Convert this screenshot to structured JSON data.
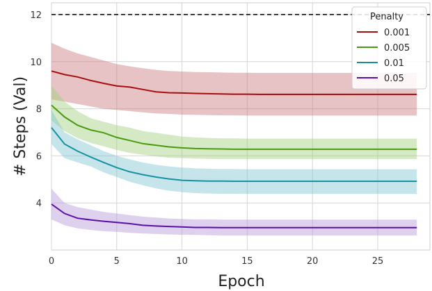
{
  "chart_data": {
    "type": "line",
    "xlabel": "Epoch",
    "ylabel": "# Steps (Val)",
    "xlim": [
      0,
      29
    ],
    "ylim": [
      2,
      12.5
    ],
    "xticks": [
      0,
      5,
      10,
      15,
      20,
      25
    ],
    "yticks": [
      4,
      6,
      8,
      10,
      12
    ],
    "grid": true,
    "legend": {
      "title": "Penalty",
      "placement": "top-right"
    },
    "x": [
      0,
      1,
      2,
      3,
      4,
      5,
      6,
      7,
      8,
      9,
      10,
      11,
      12,
      13,
      14,
      15,
      16,
      17,
      18,
      19,
      20,
      21,
      22,
      23,
      24,
      25,
      26,
      27,
      28
    ],
    "reference_line": {
      "y": 12,
      "style": "dashed",
      "color": "#111111"
    },
    "series": [
      {
        "name": "0.001",
        "color": "#a80d0d",
        "band_color": "#cd7b7e",
        "values": [
          9.6,
          9.45,
          9.35,
          9.2,
          9.08,
          8.97,
          8.92,
          8.82,
          8.72,
          8.68,
          8.67,
          8.65,
          8.64,
          8.63,
          8.62,
          8.62,
          8.61,
          8.61,
          8.61,
          8.61,
          8.61,
          8.61,
          8.61,
          8.61,
          8.61,
          8.61,
          8.61,
          8.61,
          8.61
        ],
        "lower": [
          8.4,
          8.3,
          8.2,
          8.1,
          8.0,
          7.95,
          7.9,
          7.85,
          7.8,
          7.78,
          7.75,
          7.74,
          7.73,
          7.72,
          7.72,
          7.71,
          7.71,
          7.71,
          7.71,
          7.71,
          7.71,
          7.71,
          7.71,
          7.71,
          7.71,
          7.71,
          7.71,
          7.71,
          7.71
        ],
        "upper": [
          10.8,
          10.55,
          10.35,
          10.2,
          10.05,
          9.9,
          9.8,
          9.72,
          9.65,
          9.6,
          9.58,
          9.56,
          9.55,
          9.54,
          9.53,
          9.53,
          9.52,
          9.52,
          9.52,
          9.52,
          9.52,
          9.52,
          9.52,
          9.52,
          9.52,
          9.52,
          9.52,
          9.52,
          9.52
        ]
      },
      {
        "name": "0.005",
        "color": "#4a9a0c",
        "band_color": "#9fce7c",
        "values": [
          8.15,
          7.65,
          7.3,
          7.1,
          6.98,
          6.78,
          6.65,
          6.52,
          6.45,
          6.38,
          6.34,
          6.31,
          6.3,
          6.29,
          6.28,
          6.28,
          6.28,
          6.28,
          6.28,
          6.28,
          6.28,
          6.28,
          6.28,
          6.28,
          6.28,
          6.28,
          6.28,
          6.28,
          6.28
        ],
        "lower": [
          7.5,
          7.05,
          6.75,
          6.55,
          6.4,
          6.25,
          6.12,
          6.05,
          5.98,
          5.92,
          5.9,
          5.88,
          5.87,
          5.86,
          5.86,
          5.86,
          5.86,
          5.86,
          5.86,
          5.86,
          5.86,
          5.86,
          5.86,
          5.86,
          5.86,
          5.86,
          5.86,
          5.86,
          5.86
        ],
        "upper": [
          9.0,
          8.3,
          7.9,
          7.6,
          7.45,
          7.3,
          7.2,
          7.05,
          6.98,
          6.9,
          6.82,
          6.78,
          6.76,
          6.74,
          6.74,
          6.73,
          6.73,
          6.73,
          6.73,
          6.73,
          6.73,
          6.73,
          6.73,
          6.73,
          6.73,
          6.73,
          6.73,
          6.73,
          6.73
        ]
      },
      {
        "name": "0.01",
        "color": "#1591a0",
        "band_color": "#7ec6d1",
        "values": [
          7.2,
          6.5,
          6.2,
          5.95,
          5.72,
          5.5,
          5.32,
          5.2,
          5.1,
          5.02,
          4.96,
          4.94,
          4.93,
          4.93,
          4.92,
          4.92,
          4.92,
          4.92,
          4.92,
          4.92,
          4.92,
          4.92,
          4.92,
          4.92,
          4.92,
          4.92,
          4.92,
          4.92,
          4.92
        ],
        "lower": [
          6.5,
          5.9,
          5.72,
          5.55,
          5.3,
          5.1,
          4.9,
          4.75,
          4.62,
          4.52,
          4.46,
          4.42,
          4.4,
          4.39,
          4.39,
          4.38,
          4.38,
          4.38,
          4.38,
          4.38,
          4.38,
          4.38,
          4.38,
          4.38,
          4.38,
          4.38,
          4.38,
          4.38,
          4.38
        ],
        "upper": [
          7.95,
          7.0,
          6.7,
          6.45,
          6.2,
          6.0,
          5.85,
          5.72,
          5.62,
          5.55,
          5.5,
          5.47,
          5.45,
          5.44,
          5.44,
          5.43,
          5.43,
          5.43,
          5.43,
          5.43,
          5.43,
          5.43,
          5.43,
          5.43,
          5.43,
          5.43,
          5.43,
          5.43,
          5.43
        ],
        "note": null
      },
      {
        "name": "0.05",
        "color": "#5b0ea8",
        "band_color": "#b39ad8",
        "values": [
          3.95,
          3.55,
          3.35,
          3.28,
          3.22,
          3.17,
          3.12,
          3.05,
          3.02,
          3.0,
          2.98,
          2.96,
          2.96,
          2.95,
          2.95,
          2.95,
          2.95,
          2.95,
          2.95,
          2.95,
          2.95,
          2.95,
          2.95,
          2.95,
          2.95,
          2.95,
          2.95,
          2.95,
          2.95
        ],
        "lower": [
          3.3,
          3.05,
          2.92,
          2.85,
          2.8,
          2.77,
          2.73,
          2.7,
          2.68,
          2.66,
          2.65,
          2.64,
          2.63,
          2.62,
          2.62,
          2.62,
          2.62,
          2.62,
          2.62,
          2.62,
          2.62,
          2.62,
          2.62,
          2.62,
          2.62,
          2.62,
          2.62,
          2.62,
          2.62
        ],
        "upper": [
          4.6,
          4.0,
          3.82,
          3.72,
          3.62,
          3.55,
          3.48,
          3.42,
          3.38,
          3.34,
          3.32,
          3.3,
          3.3,
          3.29,
          3.29,
          3.29,
          3.29,
          3.29,
          3.29,
          3.29,
          3.29,
          3.29,
          3.29,
          3.29,
          3.29,
          3.29,
          3.29,
          3.29,
          3.29
        ]
      }
    ]
  }
}
